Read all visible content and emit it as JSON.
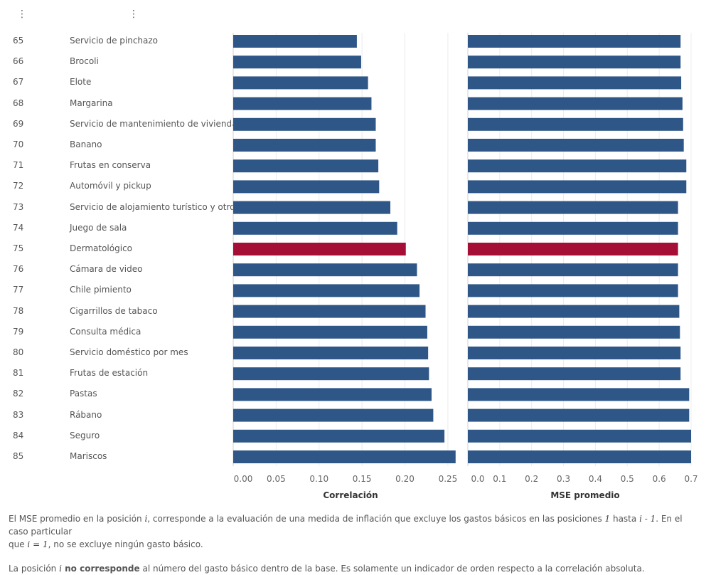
{
  "menu": {
    "icon": "more-vertical-icon"
  },
  "chart_data": {
    "type": "bar",
    "orientation": "horizontal",
    "highlight_color": "#A50E35",
    "bar_color": "#2E5686",
    "highlight_index": 10,
    "rows": [
      {
        "pos": "65",
        "name": "Servicio de pinchazo"
      },
      {
        "pos": "66",
        "name": "Brocoli"
      },
      {
        "pos": "67",
        "name": "Elote"
      },
      {
        "pos": "68",
        "name": "Margarina"
      },
      {
        "pos": "69",
        "name": "Servicio de mantenimiento de vivienda"
      },
      {
        "pos": "70",
        "name": "Banano"
      },
      {
        "pos": "71",
        "name": "Frutas en conserva"
      },
      {
        "pos": "72",
        "name": "Automóvil y pickup"
      },
      {
        "pos": "73",
        "name": "Servicio de alojamiento turístico y otros"
      },
      {
        "pos": "74",
        "name": "Juego de sala"
      },
      {
        "pos": "75",
        "name": "Dermatológico"
      },
      {
        "pos": "76",
        "name": "Cámara de video"
      },
      {
        "pos": "77",
        "name": "Chile pimiento"
      },
      {
        "pos": "78",
        "name": "Cigarrillos de tabaco"
      },
      {
        "pos": "79",
        "name": "Consulta médica"
      },
      {
        "pos": "80",
        "name": "Servicio doméstico por mes"
      },
      {
        "pos": "81",
        "name": "Frutas de estación"
      },
      {
        "pos": "82",
        "name": "Pastas"
      },
      {
        "pos": "83",
        "name": "Rábano"
      },
      {
        "pos": "84",
        "name": "Seguro"
      },
      {
        "pos": "85",
        "name": "Mariscos"
      }
    ],
    "panels": [
      {
        "xlabel": "Correlación",
        "xlim": [
          0,
          0.26
        ],
        "ticks": [
          "0.00",
          "0.05",
          "0.10",
          "0.15",
          "0.20",
          "0.25"
        ],
        "tick_values": [
          0,
          0.05,
          0.1,
          0.15,
          0.2,
          0.25
        ],
        "values": [
          0.144,
          0.149,
          0.157,
          0.161,
          0.166,
          0.166,
          0.169,
          0.17,
          0.183,
          0.191,
          0.201,
          0.214,
          0.217,
          0.224,
          0.226,
          0.227,
          0.228,
          0.231,
          0.233,
          0.246,
          0.259
        ]
      },
      {
        "xlabel": "MSE promedio",
        "xlim": [
          0,
          0.7
        ],
        "ticks": [
          "0.0",
          "0.1",
          "0.2",
          "0.3",
          "0.4",
          "0.5",
          "0.6",
          "0.7"
        ],
        "tick_values": [
          0,
          0.1,
          0.2,
          0.3,
          0.4,
          0.5,
          0.6,
          0.7
        ],
        "values": [
          0.667,
          0.667,
          0.669,
          0.673,
          0.675,
          0.677,
          0.685,
          0.685,
          0.659,
          0.659,
          0.659,
          0.659,
          0.659,
          0.663,
          0.665,
          0.667,
          0.667,
          0.694,
          0.694,
          0.7,
          0.7
        ]
      }
    ]
  },
  "notes": {
    "p1_a": "El MSE promedio en la posición ",
    "p1_i": "i",
    "p1_b": ", corresponde a la evaluación de una medida de inflación que excluye los gastos básicos en las posiciones ",
    "p1_one": "1",
    "p1_c": " hasta ",
    "p1_im1": "i - 1",
    "p1_d": ". En el caso particular",
    "p1_e": "que ",
    "p1_ieq1": "i = 1",
    "p1_f": ", no se excluye ningún gasto básico.",
    "p2_a": "La posición ",
    "p2_i": "i",
    "p2_bold": " no corresponde",
    "p2_b": " al número del gasto básico dentro de la base. Es solamente un indicador de orden respecto a la correlación absoluta."
  }
}
